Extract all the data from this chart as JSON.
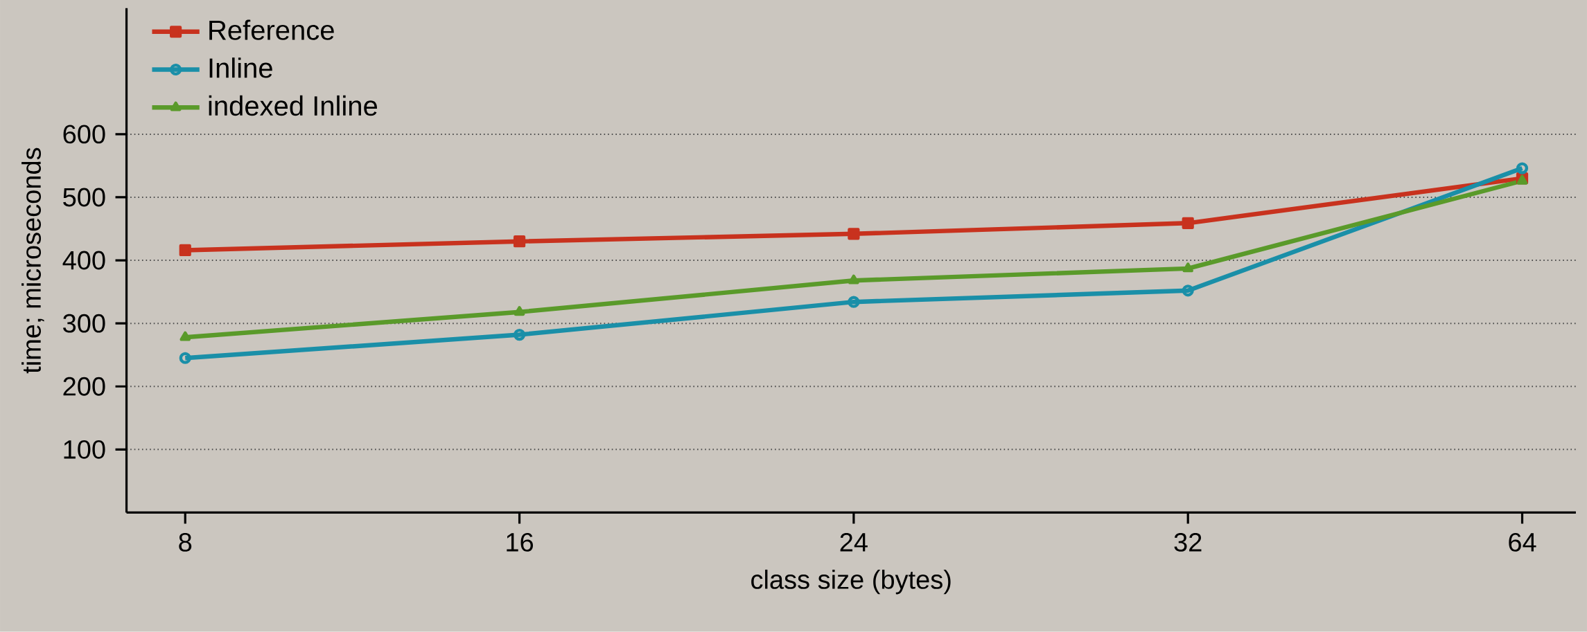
{
  "chart_data": {
    "type": "line",
    "xlabel": "class size (bytes)",
    "ylabel": "time; microseconds",
    "categories": [
      "8",
      "16",
      "24",
      "32",
      "64"
    ],
    "series": [
      {
        "name": "Reference",
        "color": "#c8321e",
        "marker": "square",
        "values": [
          416,
          430,
          442,
          459,
          530
        ]
      },
      {
        "name": "Inline",
        "color": "#1a8fa8",
        "marker": "circle",
        "values": [
          245,
          282,
          334,
          352,
          546
        ]
      },
      {
        "name": "indexed Inline",
        "color": "#5a9a2a",
        "marker": "triangle",
        "values": [
          278,
          318,
          368,
          387,
          526
        ]
      }
    ],
    "ylim": [
      0,
      800
    ],
    "yticks": [
      100,
      200,
      300,
      400,
      500,
      600
    ],
    "grid": "y",
    "legend": "top left",
    "line_style": "solid"
  }
}
